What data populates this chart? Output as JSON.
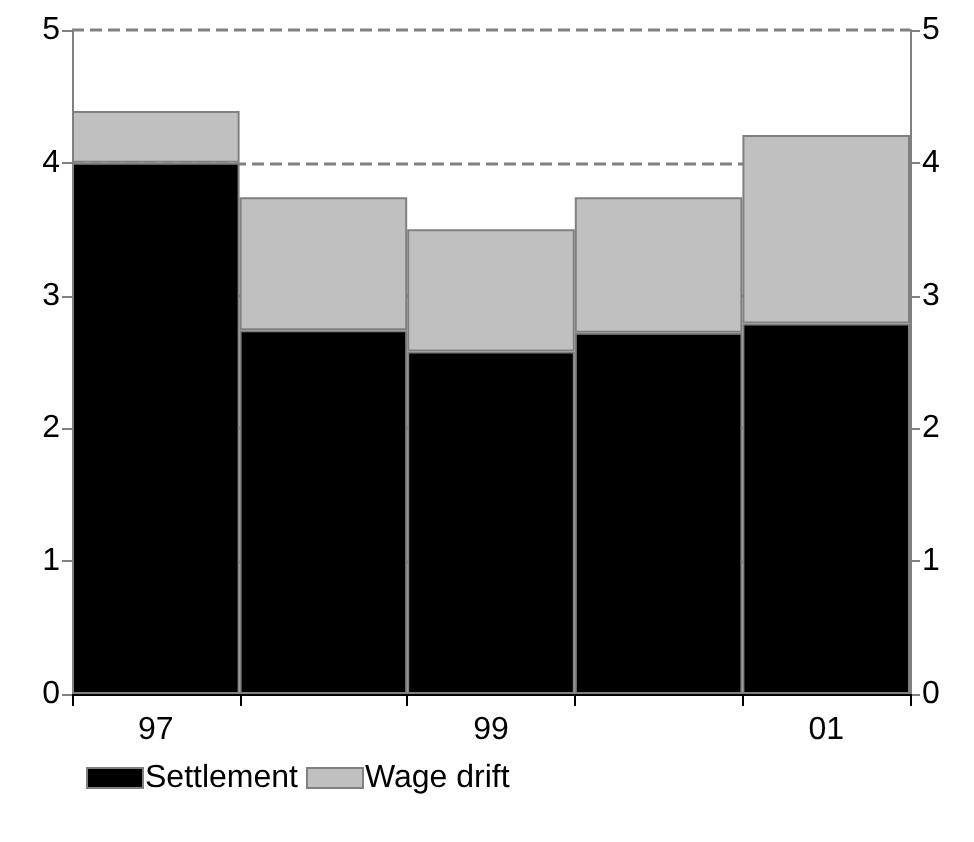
{
  "chart_data": {
    "type": "bar",
    "stacked": true,
    "categories": [
      "97",
      null,
      "99",
      null,
      "01"
    ],
    "series": [
      {
        "name": "Settlement",
        "color": "#000000",
        "values": [
          4.0,
          2.74,
          2.58,
          2.72,
          2.79
        ]
      },
      {
        "name": "Wage drift",
        "color": "#c0c0c0",
        "values": [
          0.39,
          1.0,
          0.92,
          1.02,
          1.42
        ]
      }
    ],
    "ylim": [
      0,
      5
    ],
    "yticks": [
      0,
      1,
      2,
      3,
      4,
      5
    ],
    "y2lim": [
      0,
      5
    ],
    "y2ticks": [
      0,
      1,
      2,
      3,
      4,
      5
    ],
    "grid": "y",
    "legend": "bottom left"
  }
}
